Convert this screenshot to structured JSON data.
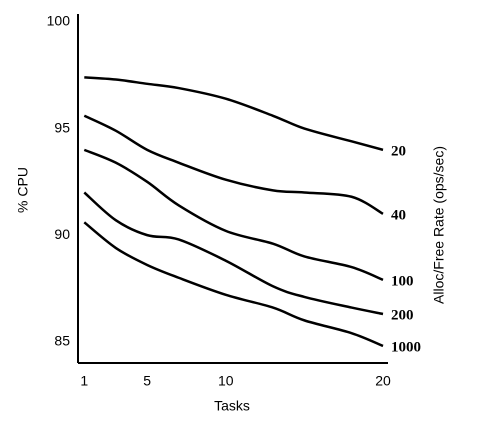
{
  "chart_data": {
    "type": "line",
    "xlabel": "Tasks",
    "ylabel": "% CPU",
    "y2label": "Alloc/Free Rate (ops/sec)",
    "x": [
      1,
      3,
      5,
      7,
      10,
      13,
      15,
      18,
      20
    ],
    "series": [
      {
        "name": "20",
        "color": "#000000",
        "values": [
          97.4,
          97.3,
          97.1,
          96.9,
          96.4,
          95.6,
          95.0,
          94.4,
          94.0
        ]
      },
      {
        "name": "40",
        "color": "#000000",
        "values": [
          95.6,
          94.9,
          94.0,
          93.4,
          92.6,
          92.1,
          92.0,
          91.8,
          91.0
        ]
      },
      {
        "name": "100",
        "color": "#000000",
        "values": [
          94.0,
          93.4,
          92.5,
          91.4,
          90.2,
          89.6,
          89.0,
          88.5,
          87.9
        ]
      },
      {
        "name": "200",
        "color": "#000000",
        "values": [
          92.0,
          90.7,
          90.0,
          89.8,
          88.8,
          87.6,
          87.1,
          86.6,
          86.3
        ]
      },
      {
        "name": "1000",
        "color": "#000000",
        "values": [
          90.6,
          89.4,
          88.6,
          88.0,
          87.2,
          86.6,
          86.0,
          85.4,
          84.8
        ]
      }
    ],
    "xlim": [
      0.6,
      20
    ],
    "ylim": [
      84,
      100
    ],
    "xticks": [
      1,
      5,
      10,
      20
    ],
    "yticks": [
      85,
      90,
      95,
      100
    ]
  }
}
